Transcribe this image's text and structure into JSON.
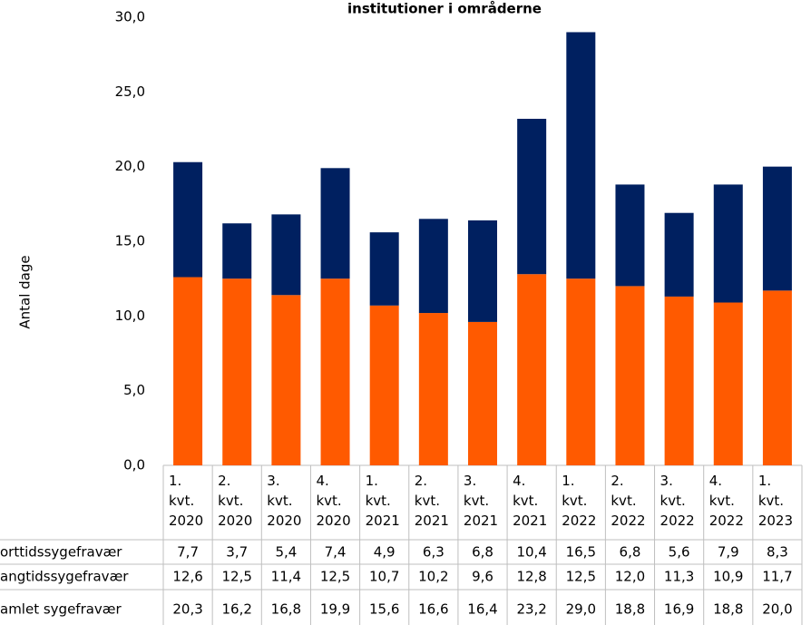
{
  "chart_data": {
    "type": "bar",
    "title": "institutioner i områderne",
    "y_label": "Antal dage",
    "categories": [
      "1. kvt. 2020",
      "2. kvt. 2020",
      "3. kvt. 2020",
      "4. kvt. 2020",
      "1. kvt. 2021",
      "2. kvt. 2021",
      "3. kvt. 2021",
      "4. kvt. 2021",
      "1. kvt. 2022",
      "2. kvt. 2022",
      "3. kvt. 2022",
      "4. kvt. 2022",
      "1. kvt. 2023"
    ],
    "series": [
      {
        "name": "orttidssygefravær",
        "color": "#002060",
        "values": [
          7.7,
          3.7,
          5.4,
          7.4,
          4.9,
          6.3,
          6.8,
          10.4,
          16.5,
          6.8,
          5.6,
          7.9,
          8.3
        ],
        "value_labels": [
          "7,7",
          "3,7",
          "5,4",
          "7,4",
          "4,9",
          "6,3",
          "6,8",
          "10,4",
          "16,5",
          "6,8",
          "5,6",
          "7,9",
          "8,3"
        ]
      },
      {
        "name": "angtidssygefravær",
        "color": "#ff5a00",
        "values": [
          12.6,
          12.5,
          11.4,
          12.5,
          10.7,
          10.2,
          9.6,
          12.8,
          12.5,
          12.0,
          11.3,
          10.9,
          11.7
        ],
        "value_labels": [
          "12,6",
          "12,5",
          "11,4",
          "12,5",
          "10,7",
          "10,2",
          "9,6",
          "12,8",
          "12,5",
          "12,0",
          "11,3",
          "10,9",
          "11,7"
        ]
      },
      {
        "name": "amlet sygefravær",
        "values": [
          20.3,
          16.2,
          16.8,
          19.9,
          15.6,
          16.6,
          16.4,
          23.2,
          29.0,
          18.8,
          16.9,
          18.8,
          20.0
        ],
        "value_labels": [
          "20,3",
          "16,2",
          "16,8",
          "19,9",
          "15,6",
          "16,6",
          "16,4",
          "23,2",
          "29,0",
          "18,8",
          "16,9",
          "18,8",
          "20,0"
        ]
      }
    ],
    "ylim": [
      0,
      30
    ],
    "yticks": [
      {
        "value": 0,
        "label": "0,0"
      },
      {
        "value": 5,
        "label": "5,0"
      },
      {
        "value": 10,
        "label": "10,0"
      },
      {
        "value": 15,
        "label": "15,0"
      },
      {
        "value": 20,
        "label": "20,0"
      },
      {
        "value": 25,
        "label": "25,0"
      },
      {
        "value": 30,
        "label": "30,0"
      }
    ]
  }
}
